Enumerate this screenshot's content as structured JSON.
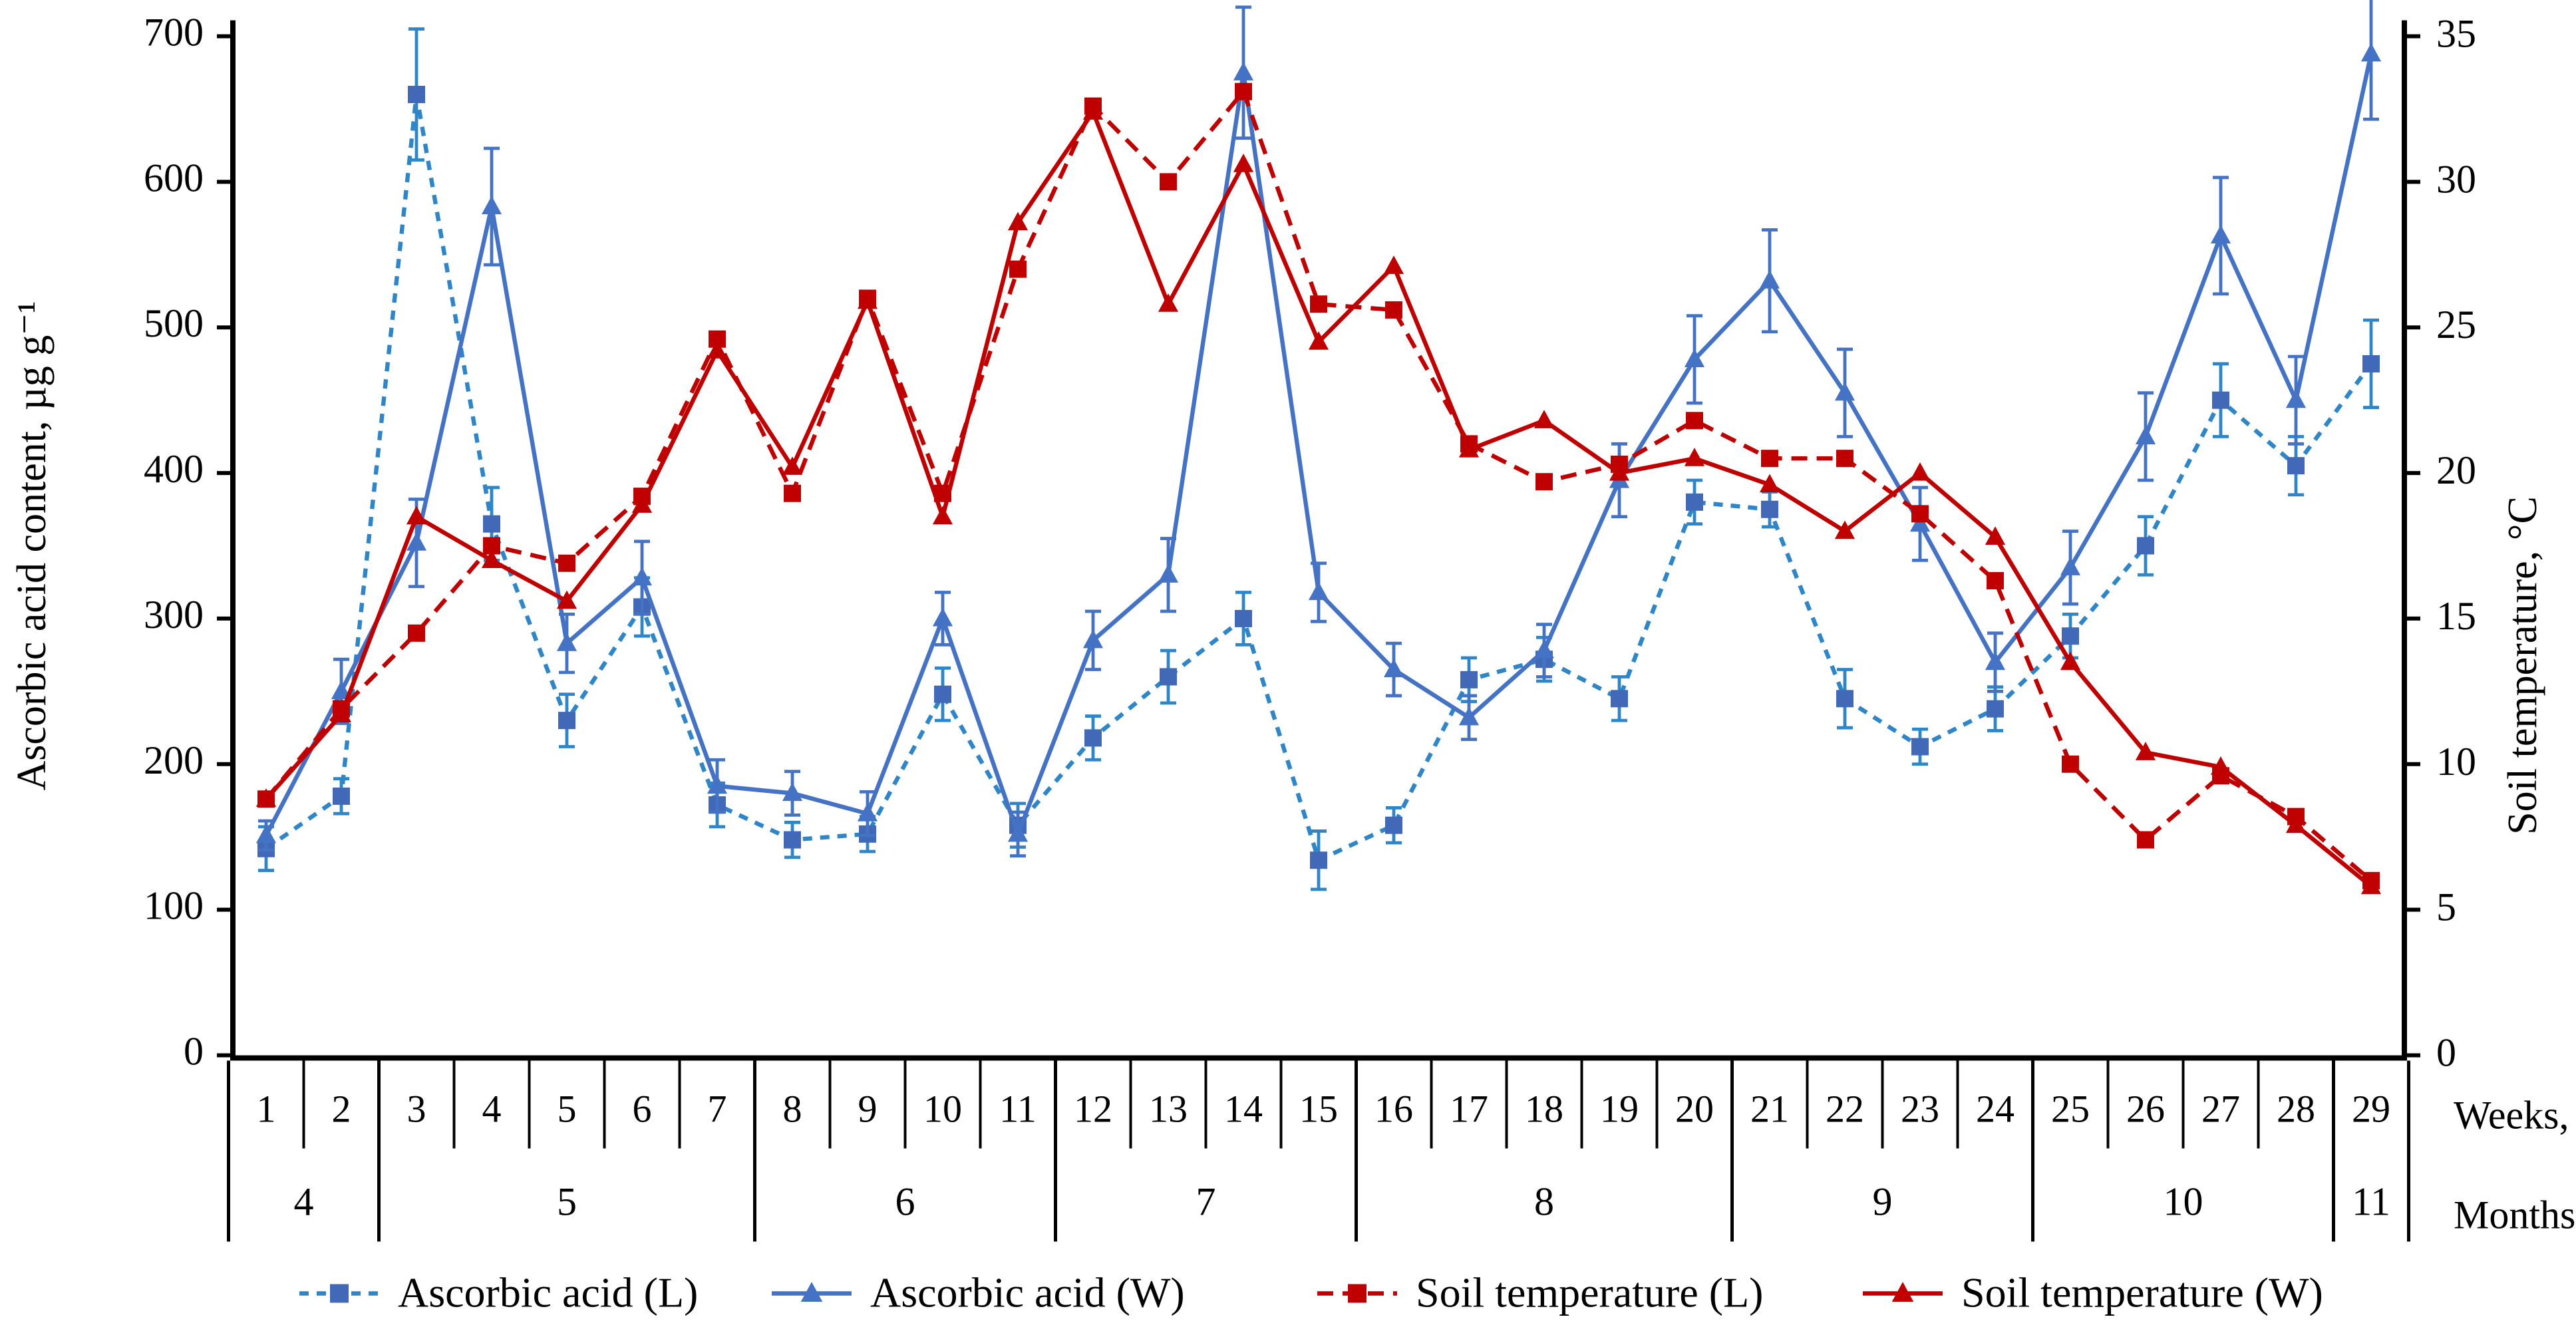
{
  "chart_data": {
    "type": "line",
    "title": "",
    "x_axis": {
      "weeks_label": "Weeks,",
      "months_label": "Months",
      "weeks": [
        1,
        2,
        3,
        4,
        5,
        6,
        7,
        8,
        9,
        10,
        11,
        12,
        13,
        14,
        15,
        16,
        17,
        18,
        19,
        20,
        21,
        22,
        23,
        24,
        25,
        26,
        27,
        28,
        29
      ],
      "months": [
        {
          "label": "4",
          "from": 1,
          "to": 2
        },
        {
          "label": "5",
          "from": 3,
          "to": 7
        },
        {
          "label": "6",
          "from": 8,
          "to": 11
        },
        {
          "label": "7",
          "from": 12,
          "to": 15
        },
        {
          "label": "8",
          "from": 16,
          "to": 20
        },
        {
          "label": "9",
          "from": 21,
          "to": 24
        },
        {
          "label": "10",
          "from": 25,
          "to": 28
        },
        {
          "label": "11",
          "from": 29,
          "to": 29
        }
      ]
    },
    "y_left": {
      "label": "Ascorbic acid content, µg g⁻¹",
      "min": 0,
      "max": 700,
      "step": 100,
      "ticks": [
        0,
        100,
        200,
        300,
        400,
        500,
        600,
        700
      ]
    },
    "y_right": {
      "label": "Soil temperature, °C",
      "min": 0,
      "max": 35,
      "step": 5,
      "ticks": [
        0,
        5,
        10,
        15,
        20,
        25,
        30,
        35
      ]
    },
    "grid": false,
    "legend_position": "bottom",
    "series": [
      {
        "name": "Ascorbic acid (L)",
        "axis": "left",
        "line": "dashed",
        "marker": "square",
        "color": "#2E86C8",
        "marker_color": "#4169B8",
        "values": [
          142,
          178,
          660,
          365,
          230,
          308,
          172,
          148,
          152,
          248,
          158,
          218,
          260,
          300,
          134,
          158,
          258,
          272,
          245,
          380,
          375,
          245,
          212,
          238,
          288,
          350,
          450,
          405,
          475
        ],
        "errors": [
          15,
          12,
          45,
          25,
          18,
          20,
          15,
          12,
          12,
          18,
          15,
          15,
          18,
          18,
          20,
          12,
          15,
          15,
          15,
          15,
          12,
          20,
          12,
          15,
          15,
          20,
          25,
          20,
          30
        ]
      },
      {
        "name": "Ascorbic acid (W)",
        "axis": "left",
        "line": "solid",
        "marker": "triangle",
        "color": "#4472C4",
        "marker_color": "#4472C4",
        "values": [
          151,
          250,
          352,
          583,
          283,
          328,
          185,
          180,
          166,
          300,
          152,
          285,
          330,
          675,
          318,
          265,
          232,
          278,
          395,
          478,
          532,
          455,
          365,
          270,
          335,
          425,
          563,
          450,
          688
        ],
        "errors": [
          10,
          22,
          30,
          40,
          20,
          25,
          18,
          15,
          15,
          18,
          15,
          20,
          25,
          45,
          20,
          18,
          15,
          18,
          25,
          30,
          35,
          30,
          25,
          20,
          25,
          30,
          40,
          30,
          45
        ]
      },
      {
        "name": "Soil temperature (L)",
        "axis": "right",
        "line": "dashed",
        "marker": "square",
        "color": "#C00000",
        "marker_color": "#C00000",
        "values": [
          8.8,
          11.9,
          14.5,
          17.5,
          16.9,
          19.2,
          24.6,
          19.3,
          26.0,
          19.3,
          27.0,
          32.6,
          30.0,
          33.1,
          25.8,
          25.6,
          21.0,
          19.7,
          20.3,
          21.8,
          20.5,
          20.5,
          18.6,
          16.3,
          10.0,
          7.4,
          9.6,
          8.2,
          6.0
        ],
        "errors": []
      },
      {
        "name": "Soil temperature (W)",
        "axis": "right",
        "line": "solid",
        "marker": "triangle",
        "color": "#C00000",
        "marker_color": "#C00000",
        "values": [
          8.8,
          11.7,
          18.5,
          17.0,
          15.6,
          18.9,
          24.2,
          20.2,
          25.9,
          18.5,
          28.6,
          32.4,
          25.8,
          30.6,
          24.5,
          27.1,
          20.8,
          21.8,
          20.0,
          20.5,
          19.6,
          18.0,
          20.0,
          17.8,
          13.5,
          10.4,
          9.9,
          7.9,
          5.8
        ],
        "errors": []
      }
    ],
    "legend": [
      "Ascorbic acid (L)",
      "Ascorbic acid (W)",
      "Soil temperature (L)",
      "Soil temperature (W)"
    ]
  }
}
